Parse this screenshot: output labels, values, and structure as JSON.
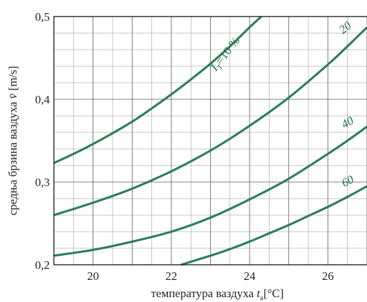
{
  "chart_data": {
    "type": "line",
    "title": "",
    "xlabel": "температура ваздуха",
    "xlabel_symbol": "t",
    "xlabel_subscript": "a",
    "xlabel_unit": "[°C]",
    "ylabel": "средња брзина ваздуха",
    "ylabel_symbol": "v̄",
    "ylabel_unit": "[m/s]",
    "xlim": [
      19,
      27
    ],
    "ylim": [
      0.2,
      0.5
    ],
    "x_ticks": [
      20,
      22,
      24,
      26
    ],
    "x_tick_labels": [
      "20",
      "22",
      "24",
      "26"
    ],
    "y_ticks": [
      0.2,
      0.3,
      0.4,
      0.5
    ],
    "y_tick_labels": [
      "0,2",
      "0,3",
      "0,4",
      "0,5"
    ],
    "grid": true,
    "line_color": "#2e7d57",
    "series": [
      {
        "name": "I_T=10 %",
        "label_prefix": "I",
        "label_subscript": "T",
        "label_suffix": "=10 %",
        "x": [
          19.0,
          19.5,
          20.0,
          20.5,
          21.0,
          21.5,
          22.0,
          22.5,
          23.0,
          23.5,
          24.0,
          24.3
        ],
        "y": [
          0.323,
          0.334,
          0.346,
          0.359,
          0.373,
          0.389,
          0.406,
          0.424,
          0.443,
          0.464,
          0.487,
          0.5
        ]
      },
      {
        "name": "20",
        "x": [
          19.0,
          20.0,
          21.0,
          22.0,
          23.0,
          24.0,
          25.0,
          26.0,
          26.5,
          27.0
        ],
        "y": [
          0.26,
          0.275,
          0.292,
          0.313,
          0.338,
          0.368,
          0.402,
          0.442,
          0.464,
          0.487
        ]
      },
      {
        "name": "40",
        "x": [
          19.0,
          20.0,
          21.0,
          22.0,
          23.0,
          24.0,
          25.0,
          26.0,
          26.5,
          27.0
        ],
        "y": [
          0.211,
          0.218,
          0.228,
          0.24,
          0.257,
          0.279,
          0.304,
          0.334,
          0.35,
          0.367
        ]
      },
      {
        "name": "60",
        "x": [
          22.25,
          23.0,
          23.5,
          24.0,
          24.5,
          25.0,
          25.5,
          26.0,
          26.5,
          27.0
        ],
        "y": [
          0.2,
          0.211,
          0.219,
          0.228,
          0.238,
          0.248,
          0.259,
          0.27,
          0.282,
          0.295
        ]
      }
    ]
  }
}
